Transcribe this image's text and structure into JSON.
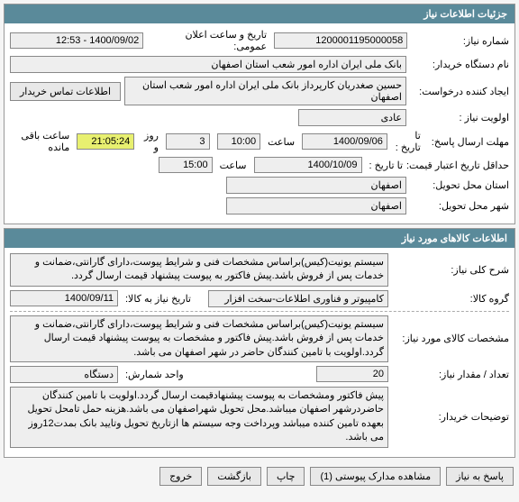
{
  "panel1": {
    "title": "جزئیات اطلاعات نیاز",
    "need_number_label": "شماره نیاز:",
    "need_number": "1200001195000058",
    "announce_label": "تاریخ و ساعت اعلان عمومی:",
    "announce_value": "1400/09/02 - 12:53",
    "buyer_label": "نام دستگاه خریدار:",
    "buyer_value": "بانک ملی ایران اداره امور شعب استان اصفهان",
    "creator_label": "ایجاد کننده درخواست:",
    "creator_value": "حسین صغدریان کارپرداز بانک ملی ایران اداره امور شعب استان اصفهان",
    "contact_btn": "اطلاعات تماس خریدار",
    "priority_label": "اولویت نیاز :",
    "priority_value": "عادی",
    "deadline_label": "مهلت ارسال پاسخ:",
    "to_date_label": "تا تاریخ :",
    "deadline_date": "1400/09/06",
    "time_label": "ساعت",
    "deadline_time": "10:00",
    "remain_days": "3",
    "remain_days_label": "روز و",
    "remain_time": "21:05:24",
    "remain_time_label": "ساعت باقی مانده",
    "validity_label": "حداقل تاریخ اعتبار قیمت:",
    "validity_date": "1400/10/09",
    "validity_time": "15:00",
    "delivery_state_label": "استان محل تحویل:",
    "delivery_state": "اصفهان",
    "delivery_city_label": "شهر محل تحویل:",
    "delivery_city": "اصفهان"
  },
  "panel2": {
    "title": "اطلاعات کالاهای مورد نیاز",
    "desc_label": "شرح کلی نیاز:",
    "desc_value": "سیستم یونیت(کیس)براساس مشخصات فنی و شرایط پیوست،دارای گارانتی،ضمانت و خدمات پس از فروش باشد.پیش فاکتور به پیوست پیشنهاد قیمت ارسال گردد.",
    "group_label": "گروه کالا:",
    "group_value": "کامپیوتر و فناوری اطلاعات-سخت افزار",
    "need_date_label": "تاریخ نیاز به کالا:",
    "need_date": "1400/09/11",
    "spec_label": "مشخصات کالای مورد نیاز:",
    "spec_value": "سیستم یونیت(کیس)براساس مشخصات فنی و شرایط پیوست،دارای گارانتی،ضمانت و خدمات پس از فروش باشد.پیش فاکتور و مشخصات به پیوست پیشنهاد قیمت ارسال گردد.اولویت با تامین کنندگان حاضر در شهر اصفهان می باشد.",
    "qty_label": "تعداد / مقدار نیاز:",
    "qty_value": "20",
    "unit_label": "واحد شمارش:",
    "unit_value": "دستگاه",
    "notes_label": "توضیحات خریدار:",
    "notes_value": "پیش فاکتور ومشخصات به پیوست پیشنهادقیمت ارسال گردد.اولویت با تامین کنندگان حاضردرشهر اصفهان میباشد.محل تحویل شهراصفهان می باشد.هزینه حمل تامحل تحویل بعهده تامین کننده میباشد وپرداخت وجه سیستم ها ازتاریخ تحویل وتایید بانک بمدت12روز می باشد."
  },
  "footer": {
    "reply": "پاسخ به نیاز",
    "attach": "مشاهده مدارک پیوستی (1)",
    "print": "چاپ",
    "back": "بازگشت",
    "exit": "خروج"
  }
}
